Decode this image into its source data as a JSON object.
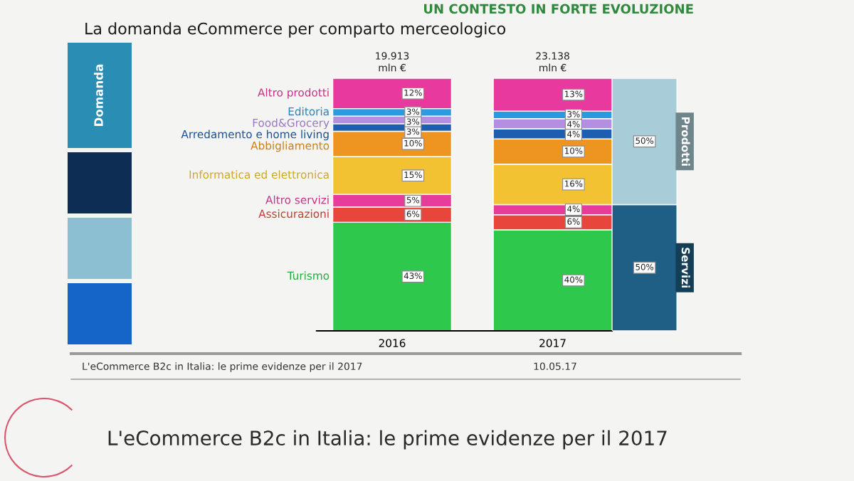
{
  "chart_data": [
    {
      "type": "bar",
      "stacked": true,
      "title": "La domanda eCommerce per comparto merceologico",
      "categories": [
        "2016",
        "2017"
      ],
      "series": [
        {
          "name": "Turismo",
          "color": "#2ec84c",
          "values": [
            43,
            40
          ],
          "value_labels": [
            "43%",
            "40%"
          ]
        },
        {
          "name": "Assicurazioni",
          "color": "#e8453c",
          "values": [
            6,
            6
          ],
          "value_labels": [
            "6%",
            "6%"
          ]
        },
        {
          "name": "Altro servizi",
          "color": "#e83c9c",
          "values": [
            5,
            4
          ],
          "value_labels": [
            "5%",
            "4%"
          ]
        },
        {
          "name": "Informatica ed elettronica",
          "color": "#f2c232",
          "values": [
            15,
            16
          ],
          "value_labels": [
            "15%",
            "16%"
          ]
        },
        {
          "name": "Abbigliamento",
          "color": "#ee9420",
          "values": [
            10,
            10
          ],
          "value_labels": [
            "10%",
            "10%"
          ]
        },
        {
          "name": "Arredamento e home living",
          "color": "#1d5eb0",
          "values": [
            3,
            4
          ],
          "value_labels": [
            "3%",
            "4%"
          ]
        },
        {
          "name": "Food&Grocery",
          "color": "#b48ee0",
          "values": [
            3,
            4
          ],
          "value_labels": [
            "3%",
            "4%"
          ]
        },
        {
          "name": "Editoria",
          "color": "#2a9be0",
          "values": [
            3,
            3
          ],
          "value_labels": [
            "3%",
            "3%"
          ]
        },
        {
          "name": "Altro prodotti",
          "color": "#e8399e",
          "values": [
            12,
            13
          ],
          "value_labels": [
            "12%",
            "13%"
          ]
        }
      ],
      "annotations": [
        "UN CONTESTO IN FORTE EVOLUZIONE",
        "Domanda",
        "L'eCommerce B2c in Italia: le prime evidenze per il 2017",
        "10.05.17",
        "L'eCommerce B2c in Italia: le prime evidenze per il 2017",
        {
          "text": "19.913\nmln €",
          "x": "2016",
          "y": 100
        },
        {
          "text": "23.138\nmln €",
          "x": "2017",
          "y": 100
        }
      ],
      "tick_labels": "x"
    },
    {
      "type": "bar",
      "stacked": true,
      "categories": [
        null
      ],
      "series": [
        {
          "name": "Servizi",
          "color": "#1f5f85",
          "values": [
            50
          ],
          "value_labels": [
            "50%"
          ]
        },
        {
          "name": "Prodotti",
          "color": "#a9cdd8",
          "values": [
            50
          ],
          "value_labels": [
            "50%"
          ]
        }
      ],
      "tick_labels": false
    }
  ]
}
